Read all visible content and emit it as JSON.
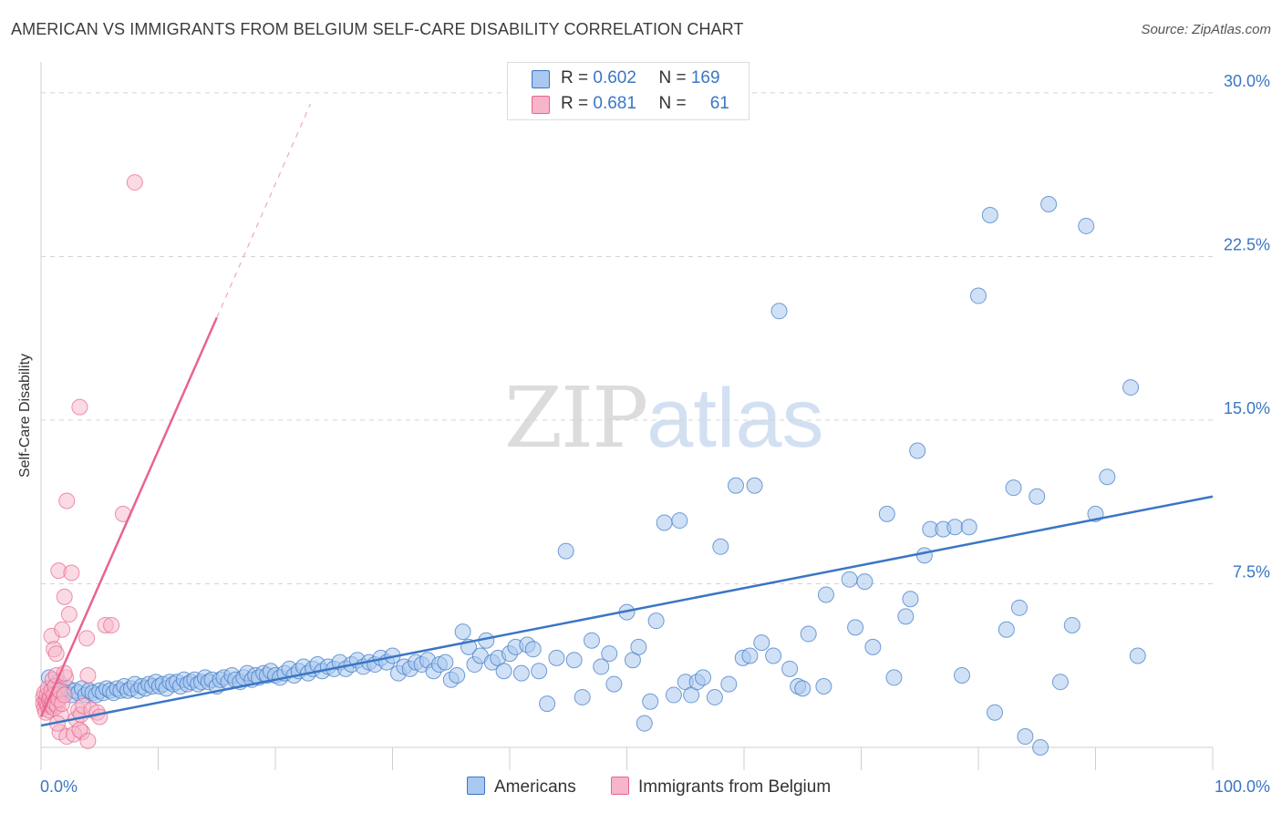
{
  "title": "AMERICAN VS IMMIGRANTS FROM BELGIUM SELF-CARE DISABILITY CORRELATION CHART",
  "source": "Source: ZipAtlas.com",
  "watermark": {
    "zip": "ZIP",
    "atlas": "atlas"
  },
  "colors": {
    "blue": "#3a76c4",
    "blue_fill": "#a9c8ef",
    "pink": "#e8648f",
    "pink_fill": "#f6b5c8"
  },
  "legend_top": {
    "rows": [
      {
        "r_label": "R = ",
        "r_value": "0.602",
        "n_label": "N = ",
        "n_value": "169"
      },
      {
        "r_label": "R = ",
        "r_value": "0.681",
        "n_label": "N = ",
        "n_value": "61"
      }
    ]
  },
  "legend_bottom": {
    "americans": "Americans",
    "belgium": "Immigrants from Belgium"
  },
  "chart_data": {
    "type": "scatter",
    "title": "AMERICAN VS IMMIGRANTS FROM BELGIUM SELF-CARE DISABILITY CORRELATION CHART",
    "xlabel": "",
    "ylabel": "Self-Care Disability",
    "xlim": [
      0,
      100
    ],
    "ylim": [
      0,
      31
    ],
    "x_tick_labels": [
      "0.0%",
      "100.0%"
    ],
    "y_ticks": [
      7.5,
      15.0,
      22.5,
      30.0
    ],
    "y_tick_labels": [
      "7.5%",
      "15.0%",
      "22.5%",
      "30.0%"
    ],
    "grid": "horizontal dashed",
    "legend_position": "bottom",
    "series": [
      {
        "name": "Americans",
        "color": "#3a76c4",
        "trend": {
          "x0": 0,
          "y0": 1.0,
          "x1": 100,
          "y1": 11.5
        },
        "points": [
          [
            0.7,
            3.2
          ],
          [
            1.2,
            2.8
          ],
          [
            1.5,
            3.0
          ],
          [
            1.8,
            2.6
          ],
          [
            2.0,
            2.5
          ],
          [
            2.3,
            2.7
          ],
          [
            2.6,
            2.4
          ],
          [
            2.9,
            2.6
          ],
          [
            3.2,
            2.5
          ],
          [
            3.5,
            2.7
          ],
          [
            3.8,
            2.4
          ],
          [
            4.1,
            2.6
          ],
          [
            4.4,
            2.5
          ],
          [
            4.7,
            2.4
          ],
          [
            5.0,
            2.6
          ],
          [
            5.3,
            2.5
          ],
          [
            5.6,
            2.7
          ],
          [
            5.9,
            2.6
          ],
          [
            6.2,
            2.5
          ],
          [
            6.5,
            2.7
          ],
          [
            6.8,
            2.6
          ],
          [
            7.1,
            2.8
          ],
          [
            7.4,
            2.6
          ],
          [
            7.7,
            2.7
          ],
          [
            8.0,
            2.9
          ],
          [
            8.3,
            2.6
          ],
          [
            8.6,
            2.8
          ],
          [
            8.9,
            2.7
          ],
          [
            9.2,
            2.9
          ],
          [
            9.5,
            2.8
          ],
          [
            9.8,
            3.0
          ],
          [
            10.1,
            2.8
          ],
          [
            10.4,
            2.9
          ],
          [
            10.7,
            2.7
          ],
          [
            11.0,
            3.0
          ],
          [
            11.3,
            2.9
          ],
          [
            11.6,
            3.0
          ],
          [
            11.9,
            2.8
          ],
          [
            12.2,
            3.1
          ],
          [
            12.5,
            2.9
          ],
          [
            12.8,
            3.0
          ],
          [
            13.1,
            3.1
          ],
          [
            13.4,
            2.9
          ],
          [
            13.7,
            3.0
          ],
          [
            14.0,
            3.2
          ],
          [
            14.3,
            3.0
          ],
          [
            14.6,
            3.1
          ],
          [
            15.0,
            2.8
          ],
          [
            15.3,
            3.1
          ],
          [
            15.6,
            3.2
          ],
          [
            16.0,
            3.0
          ],
          [
            16.3,
            3.3
          ],
          [
            16.6,
            3.1
          ],
          [
            17.0,
            3.0
          ],
          [
            17.3,
            3.2
          ],
          [
            17.6,
            3.4
          ],
          [
            18.0,
            3.1
          ],
          [
            18.3,
            3.3
          ],
          [
            18.6,
            3.2
          ],
          [
            19.0,
            3.4
          ],
          [
            19.3,
            3.3
          ],
          [
            19.6,
            3.5
          ],
          [
            20.0,
            3.3
          ],
          [
            20.4,
            3.2
          ],
          [
            20.8,
            3.4
          ],
          [
            21.2,
            3.6
          ],
          [
            21.6,
            3.3
          ],
          [
            22.0,
            3.5
          ],
          [
            22.4,
            3.7
          ],
          [
            22.8,
            3.4
          ],
          [
            23.2,
            3.6
          ],
          [
            23.6,
            3.8
          ],
          [
            24.0,
            3.5
          ],
          [
            24.5,
            3.7
          ],
          [
            25.0,
            3.6
          ],
          [
            25.5,
            3.9
          ],
          [
            26.0,
            3.6
          ],
          [
            26.5,
            3.8
          ],
          [
            27.0,
            4.0
          ],
          [
            27.5,
            3.7
          ],
          [
            28.0,
            3.9
          ],
          [
            28.5,
            3.8
          ],
          [
            29.0,
            4.1
          ],
          [
            29.5,
            3.9
          ],
          [
            30.0,
            4.2
          ],
          [
            30.5,
            3.4
          ],
          [
            31.0,
            3.7
          ],
          [
            31.5,
            3.6
          ],
          [
            32.0,
            3.9
          ],
          [
            32.5,
            3.8
          ],
          [
            33.0,
            4.0
          ],
          [
            33.5,
            3.5
          ],
          [
            34.0,
            3.8
          ],
          [
            34.5,
            3.9
          ],
          [
            35.0,
            3.1
          ],
          [
            35.5,
            3.3
          ],
          [
            36.0,
            5.3
          ],
          [
            36.5,
            4.6
          ],
          [
            37.0,
            3.8
          ],
          [
            37.5,
            4.2
          ],
          [
            38.0,
            4.9
          ],
          [
            38.5,
            3.9
          ],
          [
            39.0,
            4.1
          ],
          [
            39.5,
            3.5
          ],
          [
            40.0,
            4.3
          ],
          [
            40.5,
            4.6
          ],
          [
            41.0,
            3.4
          ],
          [
            41.5,
            4.7
          ],
          [
            42.0,
            4.5
          ],
          [
            42.5,
            3.5
          ],
          [
            43.2,
            2.0
          ],
          [
            44.0,
            4.1
          ],
          [
            44.8,
            9.0
          ],
          [
            45.5,
            4.0
          ],
          [
            46.2,
            2.3
          ],
          [
            47.0,
            4.9
          ],
          [
            47.8,
            3.7
          ],
          [
            48.5,
            4.3
          ],
          [
            48.9,
            2.9
          ],
          [
            50.0,
            6.2
          ],
          [
            50.5,
            4.0
          ],
          [
            51.0,
            4.6
          ],
          [
            51.5,
            1.1
          ],
          [
            52.0,
            2.1
          ],
          [
            52.5,
            5.8
          ],
          [
            53.2,
            10.3
          ],
          [
            54.0,
            2.4
          ],
          [
            54.5,
            10.4
          ],
          [
            55.0,
            3.0
          ],
          [
            55.5,
            2.4
          ],
          [
            56.0,
            3.0
          ],
          [
            56.5,
            3.2
          ],
          [
            57.5,
            2.3
          ],
          [
            58.0,
            9.2
          ],
          [
            58.7,
            2.9
          ],
          [
            59.3,
            12.0
          ],
          [
            59.9,
            4.1
          ],
          [
            60.5,
            4.2
          ],
          [
            60.9,
            12.0
          ],
          [
            61.5,
            4.8
          ],
          [
            62.5,
            4.2
          ],
          [
            63.0,
            20.0
          ],
          [
            63.9,
            3.6
          ],
          [
            64.6,
            2.8
          ],
          [
            65.0,
            2.7
          ],
          [
            65.5,
            5.2
          ],
          [
            66.8,
            2.8
          ],
          [
            67.0,
            7.0
          ],
          [
            69.0,
            7.7
          ],
          [
            69.5,
            5.5
          ],
          [
            70.3,
            7.6
          ],
          [
            71.0,
            4.6
          ],
          [
            72.2,
            10.7
          ],
          [
            72.8,
            3.2
          ],
          [
            73.8,
            6.0
          ],
          [
            74.2,
            6.8
          ],
          [
            74.8,
            13.6
          ],
          [
            75.4,
            8.8
          ],
          [
            75.9,
            10.0
          ],
          [
            77.0,
            10.0
          ],
          [
            78.0,
            10.1
          ],
          [
            78.6,
            3.3
          ],
          [
            79.2,
            10.1
          ],
          [
            80.0,
            20.7
          ],
          [
            81.0,
            24.4
          ],
          [
            81.4,
            1.6
          ],
          [
            82.4,
            5.4
          ],
          [
            83.0,
            11.9
          ],
          [
            83.5,
            6.4
          ],
          [
            84.0,
            0.5
          ],
          [
            85.0,
            11.5
          ],
          [
            85.3,
            0.0
          ],
          [
            86.0,
            24.9
          ],
          [
            87.0,
            3.0
          ],
          [
            88.0,
            5.6
          ],
          [
            89.2,
            23.9
          ],
          [
            90.0,
            10.7
          ],
          [
            91.0,
            12.4
          ],
          [
            93.0,
            16.5
          ],
          [
            93.6,
            4.2
          ]
        ]
      },
      {
        "name": "Immigrants from Belgium",
        "color": "#e8648f",
        "trend": {
          "x0": 0,
          "y0": 1.4,
          "x1": 15,
          "y1": 19.7
        },
        "trend_dashed": {
          "x0": 15,
          "y0": 19.7,
          "x1": 23,
          "y1": 29.5
        },
        "points": [
          [
            0.2,
            2.3
          ],
          [
            0.2,
            2.0
          ],
          [
            0.3,
            1.8
          ],
          [
            0.3,
            2.5
          ],
          [
            0.4,
            2.1
          ],
          [
            0.4,
            1.6
          ],
          [
            0.5,
            2.4
          ],
          [
            0.5,
            2.0
          ],
          [
            0.6,
            1.9
          ],
          [
            0.6,
            2.7
          ],
          [
            0.7,
            2.2
          ],
          [
            0.7,
            1.7
          ],
          [
            0.8,
            2.0
          ],
          [
            0.8,
            2.3
          ],
          [
            0.9,
            2.6
          ],
          [
            0.9,
            1.9
          ],
          [
            1.0,
            2.1
          ],
          [
            1.0,
            3.1
          ],
          [
            1.1,
            1.8
          ],
          [
            1.1,
            2.4
          ],
          [
            1.2,
            2.0
          ],
          [
            1.2,
            2.8
          ],
          [
            1.3,
            3.3
          ],
          [
            1.4,
            1.9
          ],
          [
            1.5,
            2.2
          ],
          [
            1.6,
            2.6
          ],
          [
            1.7,
            1.5
          ],
          [
            1.8,
            2.0
          ],
          [
            2.0,
            2.4
          ],
          [
            2.1,
            3.2
          ],
          [
            0.9,
            5.1
          ],
          [
            1.1,
            4.5
          ],
          [
            1.3,
            4.3
          ],
          [
            1.5,
            8.1
          ],
          [
            1.8,
            5.4
          ],
          [
            2.0,
            3.4
          ],
          [
            2.0,
            6.9
          ],
          [
            2.2,
            11.3
          ],
          [
            2.4,
            6.1
          ],
          [
            2.6,
            8.0
          ],
          [
            3.0,
            1.3
          ],
          [
            3.2,
            1.7
          ],
          [
            3.3,
            15.6
          ],
          [
            3.4,
            1.5
          ],
          [
            3.5,
            0.7
          ],
          [
            3.6,
            1.9
          ],
          [
            3.9,
            5.0
          ],
          [
            4.0,
            3.3
          ],
          [
            4.3,
            1.7
          ],
          [
            4.8,
            1.6
          ],
          [
            5.0,
            1.4
          ],
          [
            5.5,
            5.6
          ],
          [
            6.0,
            5.6
          ],
          [
            7.0,
            10.7
          ],
          [
            8.0,
            25.9
          ],
          [
            1.6,
            0.7
          ],
          [
            2.2,
            0.5
          ],
          [
            2.8,
            0.6
          ],
          [
            3.3,
            0.8
          ],
          [
            4.0,
            0.3
          ],
          [
            1.4,
            1.1
          ]
        ]
      }
    ]
  }
}
